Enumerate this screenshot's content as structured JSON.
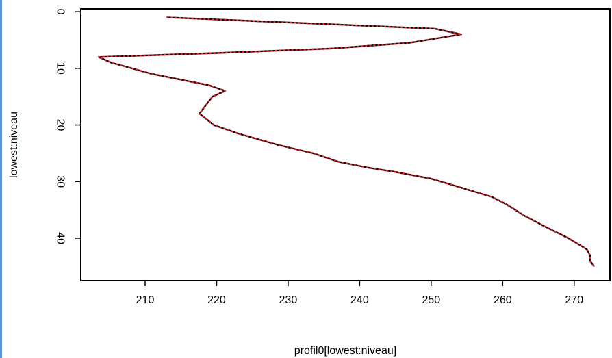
{
  "chart_data": {
    "type": "line",
    "title": "",
    "xlabel": "profil0[lowest:niveau]",
    "ylabel": "lowest:niveau",
    "xlim": [
      201,
      275
    ],
    "ylim": [
      -0.5,
      47.5
    ],
    "y_reversed": true,
    "xticks": [
      210,
      220,
      230,
      240,
      250,
      260,
      270
    ],
    "yticks": [
      0,
      10,
      20,
      30,
      40
    ],
    "grid": false,
    "series": [
      {
        "color": "#000000",
        "style": "solid",
        "points": [
          [
            213,
            1
          ],
          [
            250.5,
            3
          ],
          [
            254.2,
            4
          ],
          [
            247,
            5.5
          ],
          [
            236,
            6.5
          ],
          [
            220,
            7.3
          ],
          [
            203.5,
            8
          ],
          [
            205.3,
            9
          ],
          [
            211,
            11
          ],
          [
            219,
            13
          ],
          [
            221.2,
            14
          ],
          [
            219.4,
            15
          ],
          [
            218.8,
            16
          ],
          [
            217.6,
            18
          ],
          [
            219.6,
            20
          ],
          [
            223,
            21.5
          ],
          [
            228.5,
            23.5
          ],
          [
            233.5,
            25
          ],
          [
            237,
            26.5
          ],
          [
            241,
            27.5
          ],
          [
            245,
            28.3
          ],
          [
            250,
            29.5
          ],
          [
            254,
            31
          ],
          [
            258.5,
            32.7
          ],
          [
            260.5,
            34
          ],
          [
            263,
            36
          ],
          [
            266,
            38
          ],
          [
            269.2,
            40
          ],
          [
            271.8,
            42
          ],
          [
            272.2,
            43
          ],
          [
            272.2,
            44
          ],
          [
            272.8,
            45
          ]
        ]
      },
      {
        "color": "#e6222a",
        "style": "dashed",
        "points": [
          [
            213,
            1
          ],
          [
            250.5,
            3
          ],
          [
            254.2,
            4
          ],
          [
            247,
            5.5
          ],
          [
            236,
            6.5
          ],
          [
            220,
            7.3
          ],
          [
            203.5,
            8
          ],
          [
            205.3,
            9
          ],
          [
            211,
            11
          ],
          [
            219,
            13
          ],
          [
            221.2,
            14
          ],
          [
            219.4,
            15
          ],
          [
            218.8,
            16
          ],
          [
            217.6,
            18
          ],
          [
            219.6,
            20
          ],
          [
            223,
            21.5
          ],
          [
            228.5,
            23.5
          ],
          [
            233.5,
            25
          ],
          [
            237,
            26.5
          ],
          [
            241,
            27.5
          ],
          [
            245,
            28.3
          ],
          [
            250,
            29.5
          ],
          [
            254,
            31
          ],
          [
            258.5,
            32.7
          ],
          [
            260.5,
            34
          ],
          [
            263,
            36
          ],
          [
            266,
            38
          ],
          [
            269.2,
            40
          ],
          [
            271.8,
            42
          ],
          [
            272.2,
            43
          ],
          [
            272.2,
            44
          ],
          [
            272.8,
            45
          ]
        ]
      }
    ]
  }
}
